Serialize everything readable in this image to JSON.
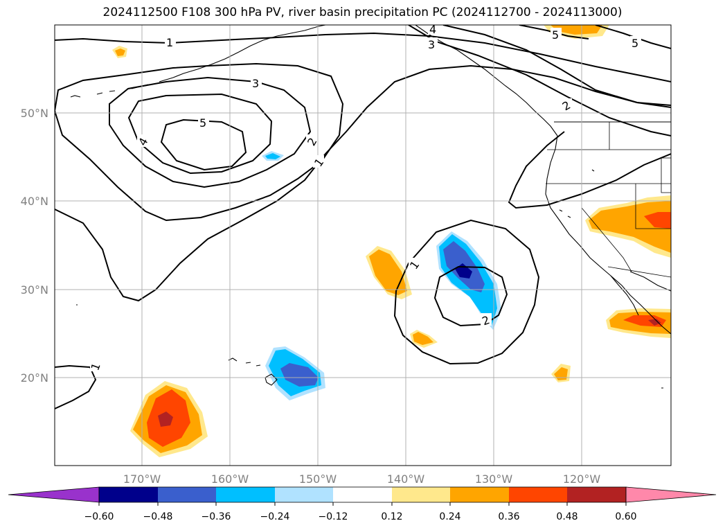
{
  "title": "2024112500 F108 300 hPa PV, river basin precipitation PC (2024112700 - 2024113000)",
  "map": {
    "lon_labels": [
      "170°W",
      "160°W",
      "150°W",
      "140°W",
      "130°W",
      "120°W"
    ],
    "lat_labels": [
      "50°N",
      "40°N",
      "30°N",
      "20°N"
    ],
    "contour_labels": [
      "1",
      "3",
      "5",
      "4",
      "2",
      "1",
      "5",
      "5",
      "3",
      "4",
      "2",
      "1",
      "2",
      "1"
    ],
    "grid_color": "#b0b0b0"
  },
  "colorbar": {
    "tick_labels": [
      "−0.60",
      "−0.48",
      "−0.36",
      "−0.24",
      "−0.12",
      "0.12",
      "0.24",
      "0.36",
      "0.48",
      "0.60"
    ],
    "colors": [
      "#9932cc",
      "#00008b",
      "#3a5fcd",
      "#00bfff",
      "#b0e2ff",
      "#ffffff",
      "#ffe88c",
      "#ffa500",
      "#ff4500",
      "#b22222",
      "#ff88aa"
    ]
  }
}
